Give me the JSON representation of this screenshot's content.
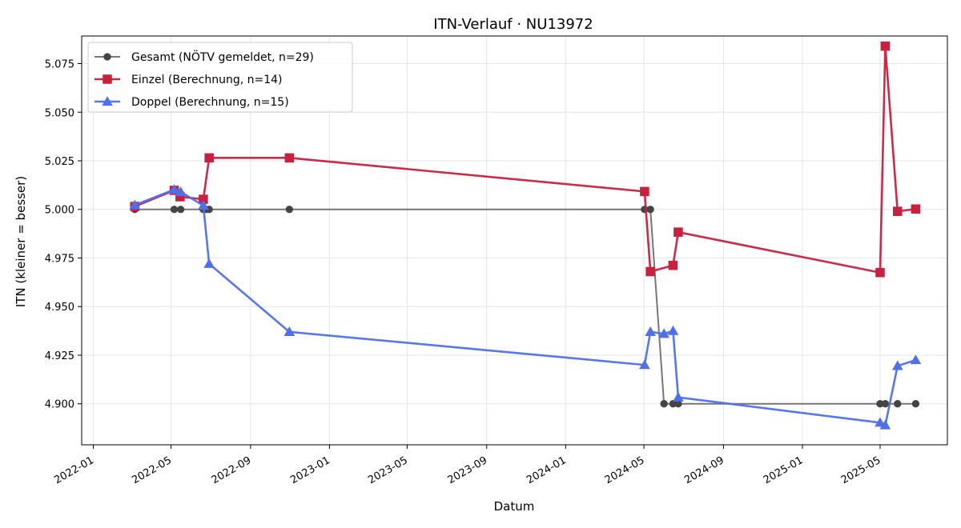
{
  "chart_data": {
    "type": "line",
    "title": "ITN-Verlauf · NU13972",
    "xlabel": "Datum",
    "ylabel": "ITN  (kleiner = besser)",
    "x_is_date": true,
    "xlim": [
      "2021-12-14",
      "2025-08-13"
    ],
    "ylim": [
      4.8789,
      5.0892
    ],
    "x_ticks": [
      "2022-01",
      "2022-05",
      "2022-09",
      "2023-01",
      "2023-05",
      "2023-09",
      "2024-01",
      "2024-05",
      "2024-09",
      "2025-01",
      "2025-05"
    ],
    "y_ticks": [
      4.9,
      4.925,
      4.95,
      4.975,
      5.0,
      5.025,
      5.05,
      5.075
    ],
    "y_tick_labels": [
      "4.900",
      "4.925",
      "4.950",
      "4.975",
      "5.000",
      "5.025",
      "5.050",
      "5.075"
    ],
    "grid": true,
    "legend_position": "top-left",
    "series": [
      {
        "name": "Gesamt (NÖTV gemeldet, n=29)",
        "color": "#555555",
        "marker": "circle",
        "points": [
          [
            "2022-03-06",
            5.0
          ],
          [
            "2022-05-06",
            5.0
          ],
          [
            "2022-05-16",
            5.0
          ],
          [
            "2022-06-20",
            5.0
          ],
          [
            "2022-06-24",
            5.0
          ],
          [
            "2022-06-29",
            5.0
          ],
          [
            "2022-10-31",
            5.0
          ],
          [
            "2024-05-02",
            5.0
          ],
          [
            "2024-05-11",
            5.0
          ],
          [
            "2024-06-01",
            4.9
          ],
          [
            "2024-06-15",
            4.9
          ],
          [
            "2024-06-23",
            4.9
          ],
          [
            "2025-05-01",
            4.9
          ],
          [
            "2025-05-09",
            4.9
          ],
          [
            "2025-05-28",
            4.9
          ],
          [
            "2025-06-25",
            4.9
          ]
        ]
      },
      {
        "name": "Einzel (Berechnung, n=14)",
        "color": "#c8203f",
        "marker": "square",
        "points": [
          [
            "2022-03-06",
            5.0015
          ],
          [
            "2022-05-06",
            5.0098
          ],
          [
            "2022-05-15",
            5.0065
          ],
          [
            "2022-06-20",
            5.0052
          ],
          [
            "2022-06-29",
            5.0265
          ],
          [
            "2022-10-31",
            5.0265
          ],
          [
            "2024-05-02",
            5.0092
          ],
          [
            "2024-05-11",
            4.968
          ],
          [
            "2024-06-15",
            4.9712
          ],
          [
            "2024-06-23",
            4.9883
          ],
          [
            "2025-05-01",
            4.9675
          ],
          [
            "2025-05-09",
            5.084
          ],
          [
            "2025-05-28",
            4.999
          ],
          [
            "2025-06-25",
            5.0002
          ]
        ]
      },
      {
        "name": "Doppel (Berechnung, n=15)",
        "color": "#4f70e8",
        "marker": "triangle",
        "points": [
          [
            "2022-03-06",
            5.0022
          ],
          [
            "2022-05-06",
            5.0102
          ],
          [
            "2022-05-16",
            5.009
          ],
          [
            "2022-06-20",
            5.002
          ],
          [
            "2022-06-29",
            4.972
          ],
          [
            "2022-10-31",
            4.937
          ],
          [
            "2024-05-02",
            4.92
          ],
          [
            "2024-05-11",
            4.937
          ],
          [
            "2024-06-01",
            4.936
          ],
          [
            "2024-06-15",
            4.9375
          ],
          [
            "2024-06-23",
            4.9033
          ],
          [
            "2025-05-01",
            4.8903
          ],
          [
            "2025-05-09",
            4.889
          ],
          [
            "2025-05-28",
            4.9195
          ],
          [
            "2025-06-25",
            4.9225
          ]
        ]
      }
    ]
  }
}
